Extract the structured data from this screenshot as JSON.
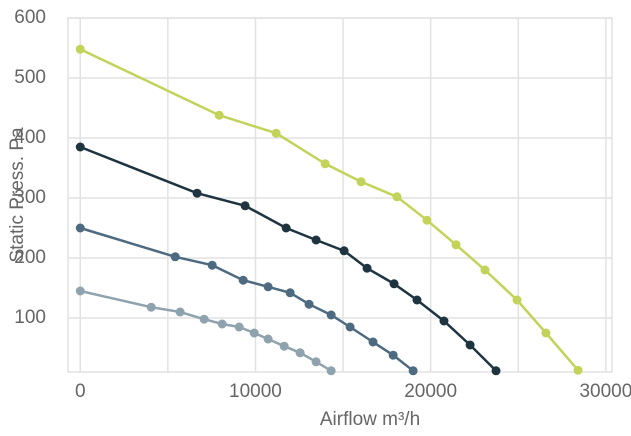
{
  "chart_data": {
    "type": "line",
    "x_label": "Airflow m³/h",
    "y_label": "Static Press. Pa",
    "xlim": [
      -700,
      30350
    ],
    "ylim": [
      10,
      600
    ],
    "xticks": [
      0,
      10000,
      20000,
      30000
    ],
    "xminor": [
      5000,
      15000,
      25000
    ],
    "yticks": [
      100,
      200,
      300,
      400,
      500,
      600
    ],
    "grid": true,
    "series": [
      {
        "color": "#c3d35a",
        "x": [
          0,
          7930,
          11180,
          13980,
          16030,
          18080,
          19790,
          21450,
          23100,
          24930,
          26580,
          28410
        ],
        "values": [
          548,
          438,
          408,
          357,
          327,
          302,
          263,
          222,
          180,
          130,
          75,
          13
        ]
      },
      {
        "color": "#1f3441",
        "x": [
          0,
          6670,
          9410,
          11750,
          13460,
          15060,
          16370,
          17910,
          19220,
          20760,
          22250,
          23730
        ],
        "values": [
          385,
          308,
          287,
          250,
          230,
          212,
          183,
          157,
          130,
          95,
          55,
          12
        ]
      },
      {
        "color": "#4d6a80",
        "x": [
          0,
          5420,
          7530,
          9300,
          10720,
          11980,
          13060,
          14320,
          15400,
          16710,
          17860,
          19000
        ],
        "values": [
          250,
          202,
          188,
          163,
          152,
          142,
          123,
          105,
          85,
          60,
          38,
          12
        ]
      },
      {
        "color": "#8fa3ae",
        "x": [
          0,
          4050,
          5700,
          7070,
          8100,
          9070,
          9930,
          10720,
          11640,
          12550,
          13460,
          14320
        ],
        "values": [
          145,
          118,
          110,
          98,
          90,
          85,
          75,
          65,
          53,
          42,
          27,
          12
        ]
      }
    ]
  }
}
